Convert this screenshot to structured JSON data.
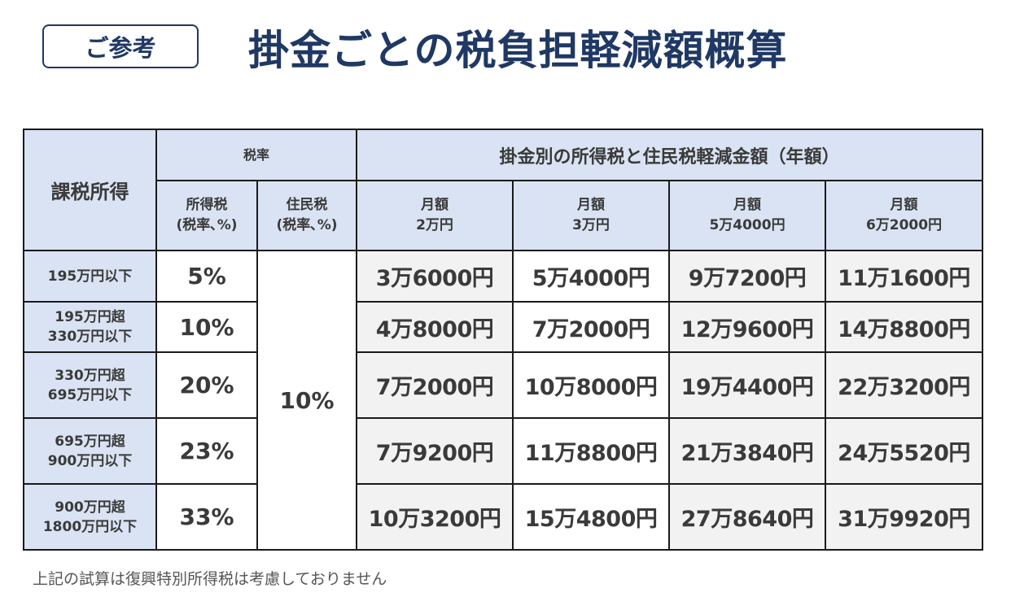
{
  "badge": "ご参考",
  "title": "掛金ごとの税負担軽減額概算",
  "table": {
    "row_header": "課税所得",
    "tax_rate_group": "税率",
    "income_tax_label": "所得税\n(税率､%)",
    "resident_tax_label": "住民税\n(税率､%)",
    "reduction_group": "掛金別の所得税と住民税軽減金額（年額）",
    "months": [
      "月額\n2万円",
      "月額\n3万円",
      "月額\n5万4000円",
      "月額\n6万2000円"
    ],
    "resident_rate": "10%",
    "rows": [
      {
        "label": "195万円以下",
        "rate": "5%",
        "amounts": [
          "3万6000円",
          "5万4000円",
          "9万7200円",
          "11万1600円"
        ]
      },
      {
        "label": "195万円超\n330万円以下",
        "rate": "10%",
        "amounts": [
          "4万8000円",
          "7万2000円",
          "12万9600円",
          "14万8800円"
        ]
      },
      {
        "label": "330万円超\n695万円以下",
        "rate": "20%",
        "amounts": [
          "7万2000円",
          "10万8000円",
          "19万4400円",
          "22万3200円"
        ]
      },
      {
        "label": "695万円超\n900万円以下",
        "rate": "23%",
        "amounts": [
          "7万9200円",
          "11万8800円",
          "21万3840円",
          "24万5520円"
        ]
      },
      {
        "label": "900万円超\n1800万円以下",
        "rate": "33%",
        "amounts": [
          "10万3200円",
          "15万4800円",
          "27万8640円",
          "31万9920円"
        ]
      }
    ]
  },
  "note": "上記の試算は復興特別所得税は考慮しておりません"
}
